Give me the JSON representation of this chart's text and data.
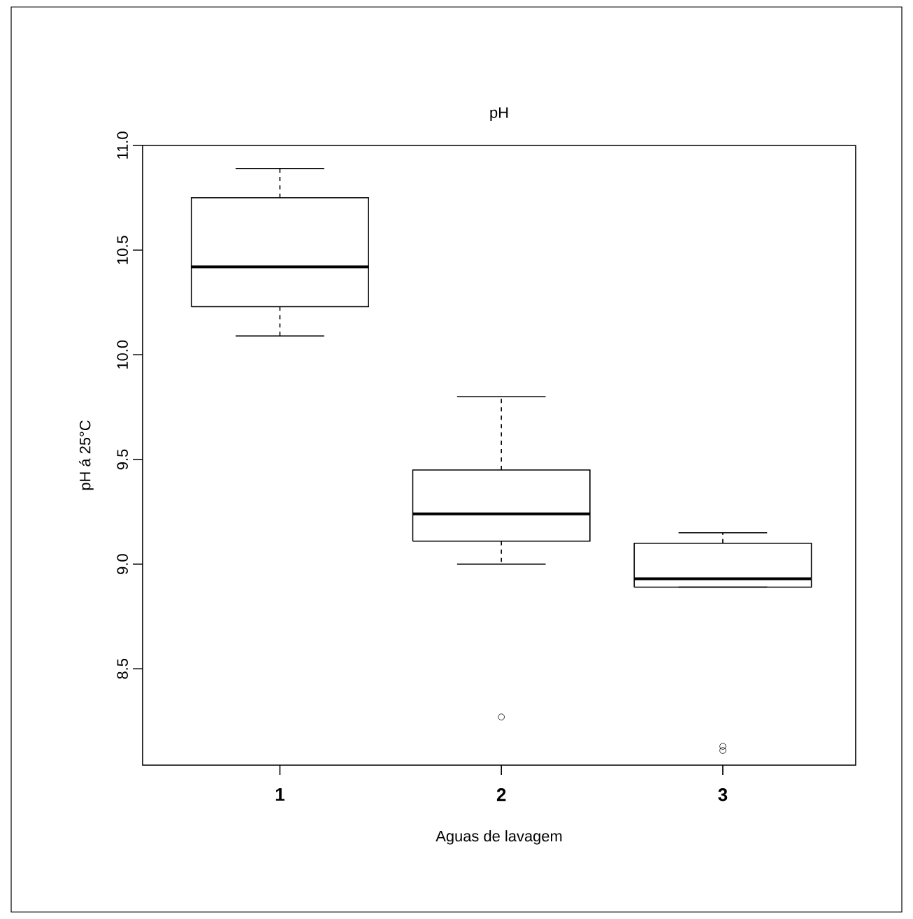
{
  "chart_data": {
    "type": "box",
    "title": "pH",
    "xlabel": "Aguas de lavagem",
    "ylabel": "pH á 25°C",
    "categories": [
      "1",
      "2",
      "3"
    ],
    "boxes": [
      {
        "low": 10.09,
        "q1": 10.23,
        "median": 10.42,
        "q3": 10.75,
        "high": 10.89
      },
      {
        "low": 9.0,
        "q1": 9.11,
        "median": 9.24,
        "q3": 9.45,
        "high": 9.8,
        "outliers": [
          8.27
        ]
      },
      {
        "low": 8.89,
        "q1": 8.89,
        "median": 8.93,
        "q3": 9.1,
        "high": 9.15,
        "outliers": [
          8.11,
          8.13
        ]
      }
    ],
    "ylim": [
      8.04,
      11.0
    ],
    "yticks": [
      8.5,
      {
        "value": 9,
        "label": "9.0"
      },
      9.5,
      {
        "value": 10,
        "label": "10.0"
      },
      10.5,
      {
        "value": 11,
        "label": "11.0"
      }
    ]
  }
}
